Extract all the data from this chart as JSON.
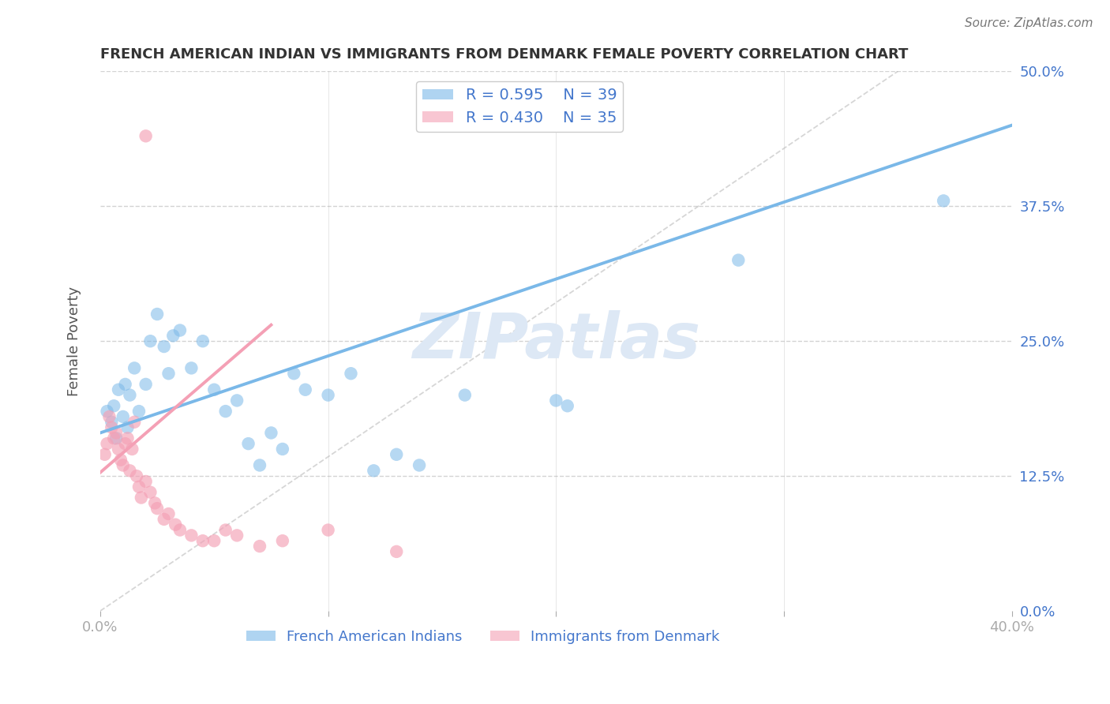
{
  "title": "FRENCH AMERICAN INDIAN VS IMMIGRANTS FROM DENMARK FEMALE POVERTY CORRELATION CHART",
  "source": "Source: ZipAtlas.com",
  "ylabel_label": "Female Poverty",
  "xlim": [
    0.0,
    40.0
  ],
  "ylim": [
    0.0,
    50.0
  ],
  "series1_color": "#7ab8e8",
  "series2_color": "#f4a0b5",
  "series1_label": "French American Indians",
  "series2_label": "Immigrants from Denmark",
  "R1": 0.595,
  "N1": 39,
  "R2": 0.43,
  "N2": 35,
  "watermark": "ZIPatlas",
  "background": "#ffffff",
  "grid_color": "#c8c8c8",
  "title_color": "#333333",
  "tick_color": "#4477cc",
  "legend_text_color": "#4477cc",
  "blue_line": [
    [
      0,
      16.5
    ],
    [
      40,
      45.0
    ]
  ],
  "pink_line": [
    [
      -1,
      11.0
    ],
    [
      7.5,
      26.5
    ]
  ],
  "diag_line": [
    [
      0,
      0
    ],
    [
      35,
      50
    ]
  ],
  "blue_scatter": [
    [
      0.3,
      18.5
    ],
    [
      0.5,
      17.5
    ],
    [
      0.6,
      19.0
    ],
    [
      0.7,
      16.0
    ],
    [
      0.8,
      20.5
    ],
    [
      1.0,
      18.0
    ],
    [
      1.1,
      21.0
    ],
    [
      1.2,
      17.0
    ],
    [
      1.3,
      20.0
    ],
    [
      1.5,
      22.5
    ],
    [
      1.7,
      18.5
    ],
    [
      2.0,
      21.0
    ],
    [
      2.2,
      25.0
    ],
    [
      2.5,
      27.5
    ],
    [
      2.8,
      24.5
    ],
    [
      3.0,
      22.0
    ],
    [
      3.2,
      25.5
    ],
    [
      3.5,
      26.0
    ],
    [
      4.0,
      22.5
    ],
    [
      4.5,
      25.0
    ],
    [
      5.0,
      20.5
    ],
    [
      5.5,
      18.5
    ],
    [
      6.0,
      19.5
    ],
    [
      6.5,
      15.5
    ],
    [
      7.0,
      13.5
    ],
    [
      7.5,
      16.5
    ],
    [
      8.0,
      15.0
    ],
    [
      8.5,
      22.0
    ],
    [
      9.0,
      20.5
    ],
    [
      10.0,
      20.0
    ],
    [
      11.0,
      22.0
    ],
    [
      12.0,
      13.0
    ],
    [
      13.0,
      14.5
    ],
    [
      14.0,
      13.5
    ],
    [
      16.0,
      20.0
    ],
    [
      20.0,
      19.5
    ],
    [
      20.5,
      19.0
    ],
    [
      28.0,
      32.5
    ],
    [
      37.0,
      38.0
    ]
  ],
  "pink_scatter": [
    [
      0.2,
      14.5
    ],
    [
      0.3,
      15.5
    ],
    [
      0.4,
      18.0
    ],
    [
      0.5,
      17.0
    ],
    [
      0.6,
      16.0
    ],
    [
      0.7,
      16.5
    ],
    [
      0.8,
      15.0
    ],
    [
      0.9,
      14.0
    ],
    [
      1.0,
      13.5
    ],
    [
      1.1,
      15.5
    ],
    [
      1.2,
      16.0
    ],
    [
      1.3,
      13.0
    ],
    [
      1.4,
      15.0
    ],
    [
      1.5,
      17.5
    ],
    [
      1.6,
      12.5
    ],
    [
      1.7,
      11.5
    ],
    [
      1.8,
      10.5
    ],
    [
      2.0,
      12.0
    ],
    [
      2.2,
      11.0
    ],
    [
      2.4,
      10.0
    ],
    [
      2.5,
      9.5
    ],
    [
      2.8,
      8.5
    ],
    [
      3.0,
      9.0
    ],
    [
      3.3,
      8.0
    ],
    [
      3.5,
      7.5
    ],
    [
      4.0,
      7.0
    ],
    [
      4.5,
      6.5
    ],
    [
      5.0,
      6.5
    ],
    [
      5.5,
      7.5
    ],
    [
      6.0,
      7.0
    ],
    [
      7.0,
      6.0
    ],
    [
      8.0,
      6.5
    ],
    [
      2.0,
      44.0
    ],
    [
      10.0,
      7.5
    ],
    [
      13.0,
      5.5
    ]
  ]
}
